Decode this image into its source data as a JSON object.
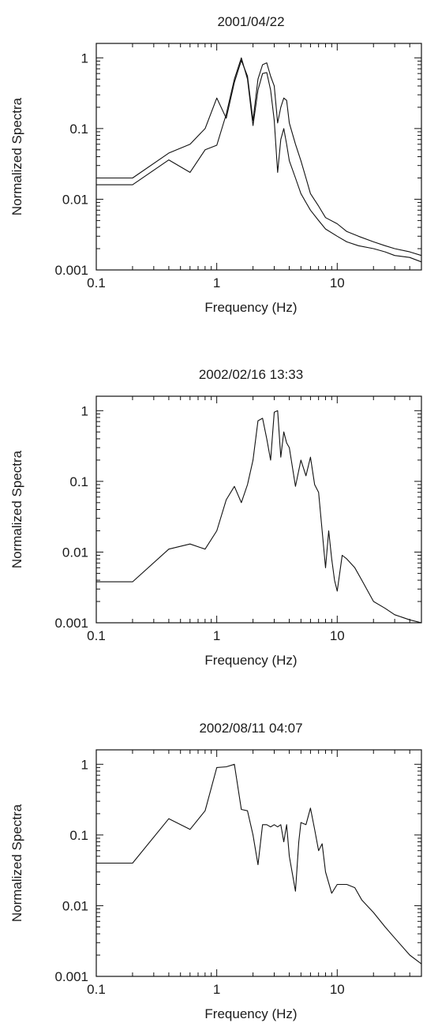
{
  "chart_data": [
    {
      "type": "line",
      "title": "2001/04/22",
      "xlabel": "Frequency (Hz)",
      "ylabel": "Normalized Spectra",
      "xscale": "log",
      "yscale": "log",
      "xlim": [
        0.1,
        50
      ],
      "ylim": [
        0.001,
        1.6
      ],
      "xticks": [
        "0.1",
        "1",
        "10"
      ],
      "yticks": [
        "0.001",
        "0.01",
        "0.1",
        "1"
      ],
      "series": [
        {
          "x": [
            0.1,
            0.2,
            0.4,
            0.6,
            0.8,
            1.0,
            1.2,
            1.4,
            1.6,
            1.8,
            2.0,
            2.2,
            2.4,
            2.6,
            2.8,
            3.0,
            3.2,
            3.4,
            3.6,
            3.8,
            4.0,
            4.5,
            5.0,
            5.5,
            6.0,
            7.0,
            8.0,
            10.0,
            12.0,
            15.0,
            20.0,
            25.0,
            30.0,
            40.0,
            50.0
          ],
          "y": [
            0.02,
            0.02,
            0.045,
            0.06,
            0.1,
            0.27,
            0.14,
            0.45,
            0.92,
            0.55,
            0.13,
            0.5,
            0.8,
            0.85,
            0.55,
            0.4,
            0.12,
            0.2,
            0.27,
            0.25,
            0.12,
            0.06,
            0.035,
            0.02,
            0.012,
            0.008,
            0.0055,
            0.0045,
            0.0035,
            0.003,
            0.0025,
            0.0022,
            0.002,
            0.0018,
            0.0016
          ]
        },
        {
          "x": [
            0.1,
            0.2,
            0.4,
            0.6,
            0.8,
            1.0,
            1.2,
            1.4,
            1.6,
            1.8,
            2.0,
            2.2,
            2.4,
            2.6,
            2.8,
            3.0,
            3.2,
            3.4,
            3.6,
            3.8,
            4.0,
            4.5,
            5.0,
            5.5,
            6.0,
            7.0,
            8.0,
            10.0,
            12.0,
            15.0,
            20.0,
            25.0,
            30.0,
            40.0,
            50.0
          ],
          "y": [
            0.016,
            0.016,
            0.036,
            0.024,
            0.05,
            0.058,
            0.16,
            0.5,
            1.0,
            0.5,
            0.11,
            0.35,
            0.6,
            0.62,
            0.35,
            0.13,
            0.024,
            0.07,
            0.1,
            0.06,
            0.035,
            0.02,
            0.012,
            0.009,
            0.007,
            0.005,
            0.0038,
            0.003,
            0.0025,
            0.0022,
            0.002,
            0.0018,
            0.0016,
            0.0015,
            0.0013
          ]
        }
      ]
    },
    {
      "type": "line",
      "title": "2002/02/16 13:33",
      "xlabel": "Frequency (Hz)",
      "ylabel": "Normalized Spectra",
      "xscale": "log",
      "yscale": "log",
      "xlim": [
        0.1,
        50
      ],
      "ylim": [
        0.001,
        1.6
      ],
      "xticks": [
        "0.1",
        "1",
        "10"
      ],
      "yticks": [
        "0.001",
        "0.01",
        "0.1",
        "1"
      ],
      "series": [
        {
          "x": [
            0.1,
            0.2,
            0.4,
            0.6,
            0.8,
            1.0,
            1.2,
            1.4,
            1.6,
            1.8,
            2.0,
            2.2,
            2.4,
            2.6,
            2.8,
            3.0,
            3.2,
            3.4,
            3.6,
            3.8,
            4.0,
            4.5,
            5.0,
            5.5,
            6.0,
            6.5,
            7.0,
            7.5,
            8.0,
            8.5,
            9.0,
            9.5,
            10.0,
            11.0,
            12.0,
            14.0,
            16.0,
            20.0,
            25.0,
            30.0,
            40.0,
            50.0
          ],
          "y": [
            0.0038,
            0.0038,
            0.011,
            0.013,
            0.011,
            0.02,
            0.055,
            0.085,
            0.05,
            0.09,
            0.2,
            0.72,
            0.78,
            0.4,
            0.2,
            0.95,
            1.0,
            0.22,
            0.5,
            0.35,
            0.3,
            0.085,
            0.2,
            0.12,
            0.22,
            0.09,
            0.07,
            0.02,
            0.006,
            0.02,
            0.008,
            0.004,
            0.0028,
            0.009,
            0.008,
            0.006,
            0.004,
            0.002,
            0.0016,
            0.0013,
            0.0011,
            0.001
          ]
        }
      ]
    },
    {
      "type": "line",
      "title": "2002/08/11 04:07",
      "xlabel": "Frequency (Hz)",
      "ylabel": "Normalized Spectra",
      "xscale": "log",
      "yscale": "log",
      "xlim": [
        0.1,
        50
      ],
      "ylim": [
        0.001,
        1.6
      ],
      "xticks": [
        "0.1",
        "1",
        "10"
      ],
      "yticks": [
        "0.001",
        "0.01",
        "0.1",
        "1"
      ],
      "series": [
        {
          "x": [
            0.1,
            0.2,
            0.4,
            0.6,
            0.8,
            1.0,
            1.2,
            1.4,
            1.6,
            1.8,
            2.0,
            2.2,
            2.4,
            2.6,
            2.8,
            3.0,
            3.2,
            3.4,
            3.6,
            3.8,
            4.0,
            4.5,
            4.8,
            5.0,
            5.5,
            6.0,
            6.5,
            7.0,
            7.5,
            8.0,
            9.0,
            10.0,
            12.0,
            14.0,
            16.0,
            20.0,
            25.0,
            30.0,
            40.0,
            50.0
          ],
          "y": [
            0.04,
            0.04,
            0.17,
            0.12,
            0.22,
            0.9,
            0.92,
            1.0,
            0.23,
            0.22,
            0.1,
            0.038,
            0.14,
            0.14,
            0.13,
            0.14,
            0.13,
            0.14,
            0.08,
            0.14,
            0.05,
            0.016,
            0.08,
            0.15,
            0.14,
            0.24,
            0.12,
            0.06,
            0.075,
            0.03,
            0.015,
            0.02,
            0.02,
            0.018,
            0.012,
            0.008,
            0.005,
            0.0035,
            0.002,
            0.0015
          ]
        }
      ]
    }
  ]
}
